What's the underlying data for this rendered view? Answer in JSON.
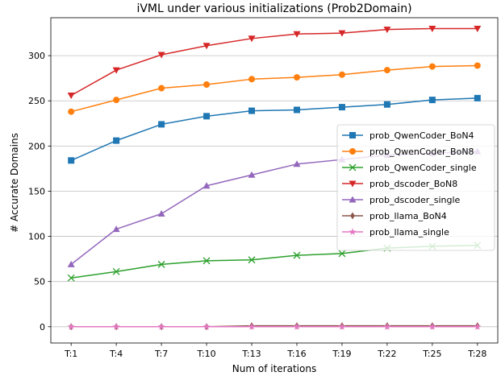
{
  "chart_data": {
    "type": "line",
    "title": "iVML under various initializations (Prob2Domain)",
    "xlabel": "Num of iterations",
    "ylabel": "# Accurate Domains",
    "categories": [
      "T:1",
      "T:4",
      "T:7",
      "T:10",
      "T:13",
      "T:16",
      "T:19",
      "T:22",
      "T:25",
      "T:28"
    ],
    "ylim": [
      -18,
      342
    ],
    "yticks": [
      0,
      50,
      100,
      150,
      200,
      250,
      300
    ],
    "grid": "horizontal",
    "legend_position": "center-right",
    "series": [
      {
        "name": "prob_QwenCoder_BoN4",
        "color": "#1f77b4",
        "marker": "square",
        "values": [
          184,
          206,
          224,
          233,
          239,
          240,
          243,
          246,
          251,
          253
        ]
      },
      {
        "name": "prob_QwenCoder_BoN8",
        "color": "#ff7f0e",
        "marker": "circle",
        "values": [
          238,
          251,
          264,
          268,
          274,
          276,
          279,
          284,
          288,
          289
        ]
      },
      {
        "name": "prob_QwenCoder_single",
        "color": "#2ca02c",
        "marker": "x",
        "values": [
          54,
          61,
          69,
          73,
          74,
          79,
          81,
          87,
          89,
          90
        ]
      },
      {
        "name": "prob_dscoder_BoN8",
        "color": "#d62728",
        "marker": "triangle-down",
        "values": [
          256,
          284,
          301,
          311,
          319,
          324,
          325,
          329,
          330,
          330
        ]
      },
      {
        "name": "prob_dscoder_single",
        "color": "#9467bd",
        "marker": "triangle-up",
        "values": [
          69,
          108,
          125,
          156,
          168,
          180,
          185,
          190,
          192,
          194
        ]
      },
      {
        "name": "prob_llama_BoN4",
        "color": "#8c564b",
        "marker": "thin-diamond",
        "values": [
          0,
          0,
          0,
          0,
          1,
          1,
          1,
          1,
          1,
          1
        ]
      },
      {
        "name": "prob_llama_single",
        "color": "#e377c2",
        "marker": "star",
        "values": [
          0,
          0,
          0,
          0,
          0,
          0,
          0,
          0,
          0,
          0
        ]
      }
    ]
  }
}
